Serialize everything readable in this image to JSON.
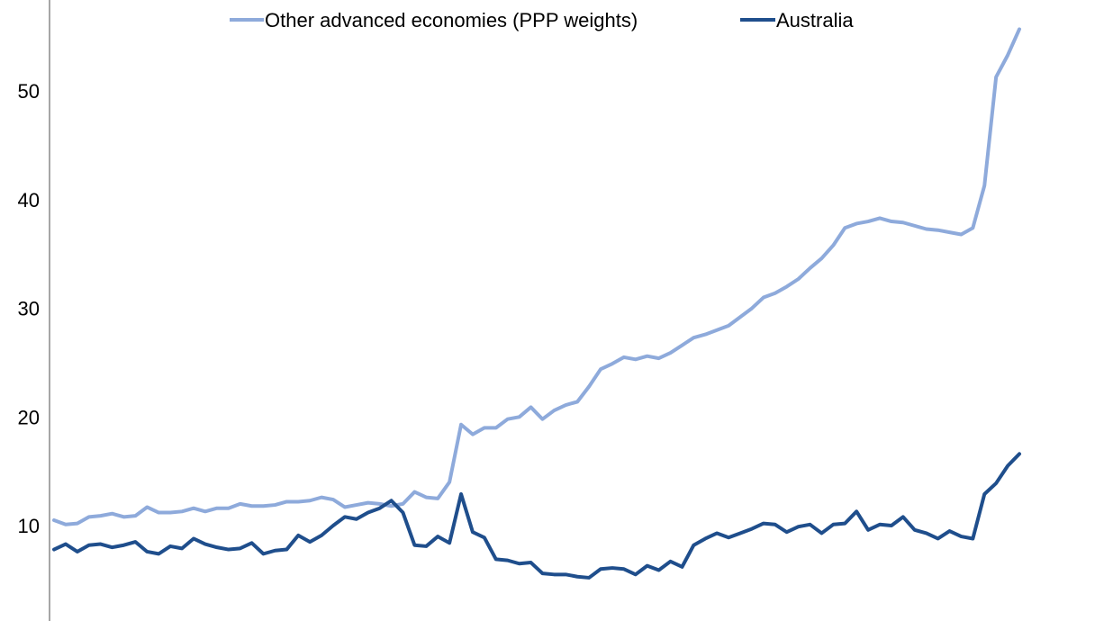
{
  "chart_data": {
    "type": "line",
    "title": "",
    "xlabel": "",
    "ylabel": "",
    "ylim": [
      0,
      57
    ],
    "yticks": [
      10,
      20,
      30,
      40,
      50
    ],
    "grid": false,
    "legend_position": "top-center",
    "series": [
      {
        "name": "Other advanced economies (PPP weights)",
        "color": "#8eaadb",
        "values": [
          10.5,
          10.1,
          10.2,
          10.8,
          10.9,
          11.1,
          10.8,
          10.9,
          11.7,
          11.2,
          11.2,
          11.3,
          11.6,
          11.3,
          11.6,
          11.6,
          12.0,
          11.8,
          11.8,
          11.9,
          12.2,
          12.2,
          12.3,
          12.6,
          12.4,
          11.7,
          11.9,
          12.1,
          12.0,
          11.8,
          12.0,
          13.1,
          12.6,
          12.5,
          14.0,
          19.3,
          18.4,
          19.0,
          19.0,
          19.8,
          20.0,
          20.9,
          19.8,
          20.6,
          21.1,
          21.4,
          22.8,
          24.4,
          24.9,
          25.5,
          25.3,
          25.6,
          25.4,
          25.9,
          26.6,
          27.3,
          27.6,
          28.0,
          28.4,
          29.2,
          30.0,
          31.0,
          31.4,
          32.0,
          32.7,
          33.7,
          34.6,
          35.8,
          37.4,
          37.8,
          38.0,
          38.3,
          38.0,
          37.9,
          37.6,
          37.3,
          37.2,
          37.0,
          36.8,
          37.4,
          41.3,
          51.3,
          53.3,
          55.7
        ]
      },
      {
        "name": "Australia",
        "color": "#1f4e8c",
        "values": [
          7.8,
          8.3,
          7.6,
          8.2,
          8.3,
          8.0,
          8.2,
          8.5,
          7.6,
          7.4,
          8.1,
          7.9,
          8.8,
          8.3,
          8.0,
          7.8,
          7.9,
          8.4,
          7.4,
          7.7,
          7.8,
          9.1,
          8.5,
          9.1,
          10.0,
          10.8,
          10.6,
          11.2,
          11.6,
          12.3,
          11.2,
          8.2,
          8.1,
          9.0,
          8.4,
          12.9,
          9.4,
          8.9,
          6.9,
          6.8,
          6.5,
          6.6,
          5.6,
          5.5,
          5.5,
          5.3,
          5.2,
          6.0,
          6.1,
          6.0,
          5.5,
          6.3,
          5.9,
          6.7,
          6.2,
          8.2,
          8.8,
          9.3,
          8.9,
          9.3,
          9.7,
          10.2,
          10.1,
          9.4,
          9.9,
          10.1,
          9.3,
          10.1,
          10.2,
          11.3,
          9.6,
          10.1,
          10.0,
          10.8,
          9.6,
          9.3,
          8.8,
          9.5,
          9.0,
          8.8,
          12.9,
          13.9,
          15.5,
          16.6
        ]
      }
    ]
  }
}
